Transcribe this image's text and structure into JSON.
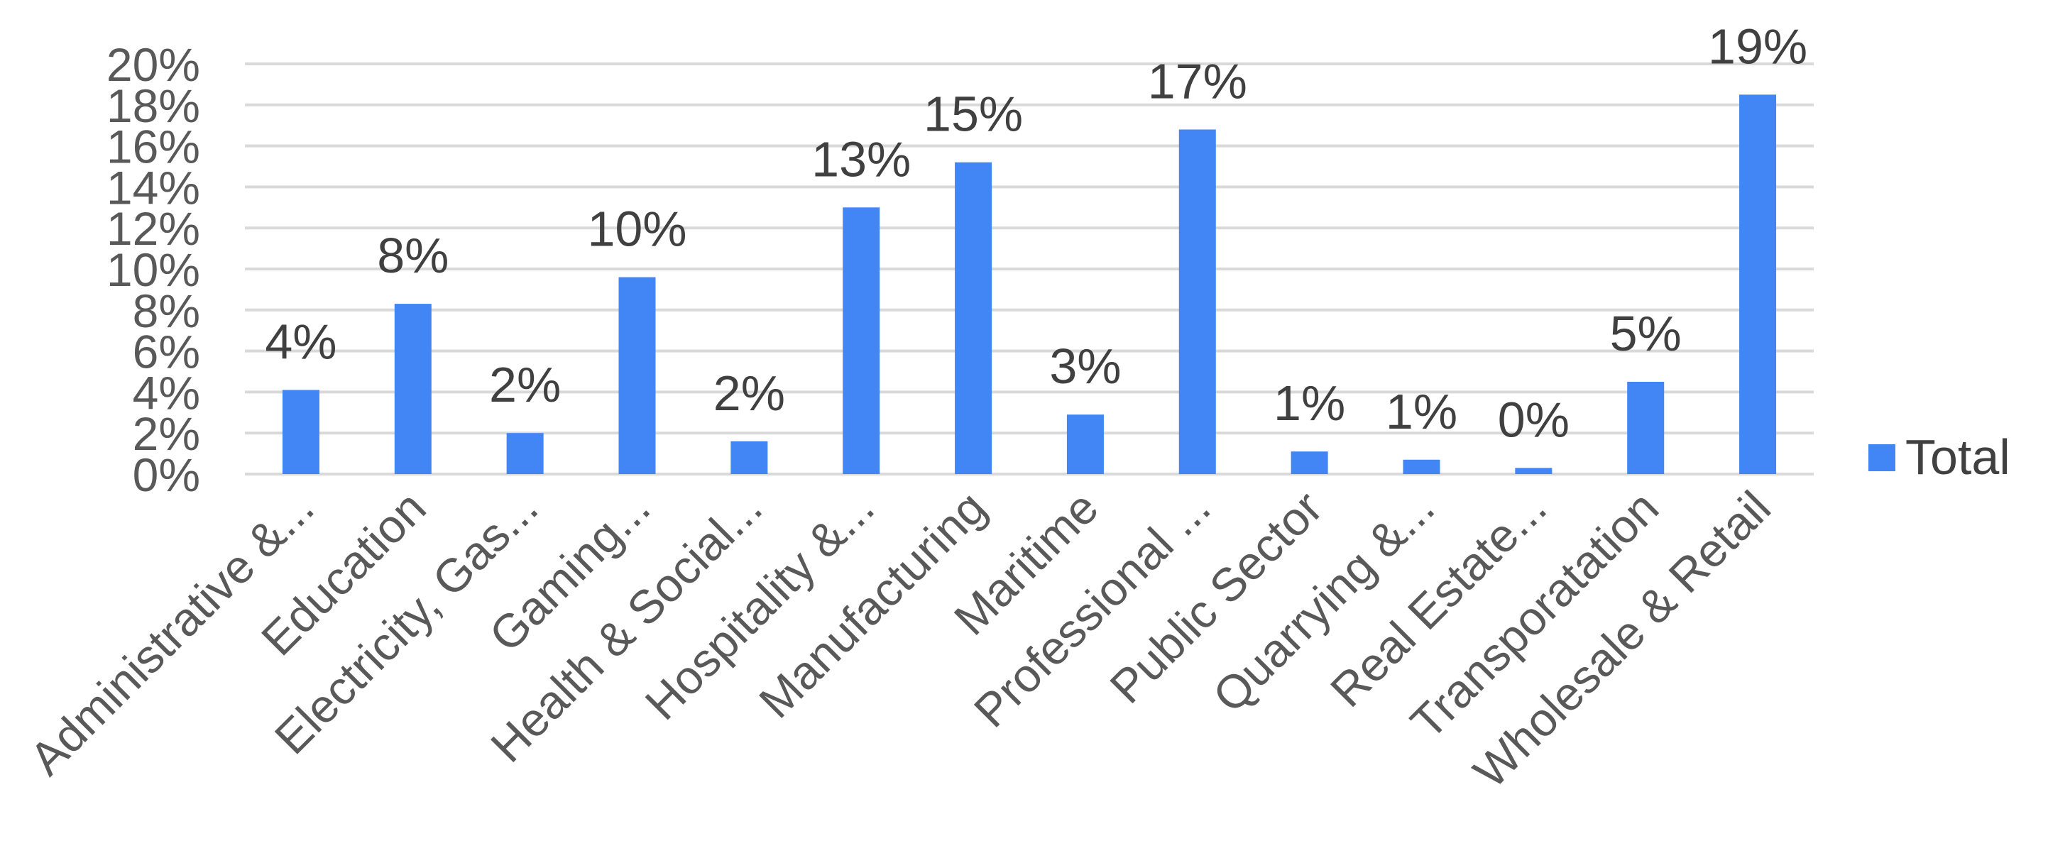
{
  "chart_data": {
    "type": "bar",
    "title": "",
    "xlabel": "",
    "ylabel": "",
    "ylim": [
      0,
      20
    ],
    "y_ticks": [
      "0%",
      "2%",
      "4%",
      "6%",
      "8%",
      "10%",
      "12%",
      "14%",
      "16%",
      "18%",
      "20%"
    ],
    "grid": true,
    "legend_position": "right",
    "categories": [
      "Administrative &...",
      "Education",
      "Electricity, Gas...",
      "Gaming...",
      "Health & Social...",
      "Hospitality &...",
      "Manufacturing",
      "Maritime",
      "Professional ...",
      "Public Sector",
      "Quarrying &...",
      "Real Estate...",
      "Transporatation",
      "Wholesale & Retail"
    ],
    "series": [
      {
        "name": "Total",
        "color": "#4285F4",
        "values": [
          4.1,
          8.3,
          2.0,
          9.6,
          1.6,
          13.0,
          15.2,
          2.9,
          16.8,
          1.1,
          0.7,
          0.3,
          4.5,
          18.5
        ],
        "data_labels": [
          "4%",
          "8%",
          "2%",
          "10%",
          "2%",
          "13%",
          "15%",
          "3%",
          "17%",
          "1%",
          "1%",
          "0%",
          "5%",
          "19%"
        ]
      }
    ],
    "colors": {
      "bar": "#4285F4",
      "grid": "#D9D9D9",
      "text": "#595959"
    }
  }
}
